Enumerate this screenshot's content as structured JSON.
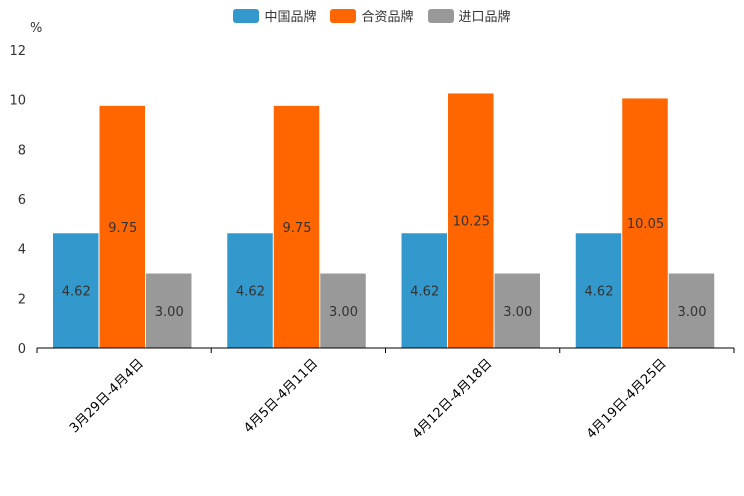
{
  "chart_data": {
    "type": "bar",
    "unit_label": "%",
    "categories": [
      "3月29日-4月4日",
      "4月5日-4月11日",
      "4月12日-4月18日",
      "4月19日-4月25日"
    ],
    "series": [
      {
        "name": "中国品牌",
        "color": "#3398cc",
        "values": [
          4.62,
          4.62,
          4.62,
          4.62
        ],
        "labels": [
          "4.62",
          "4.62",
          "4.62",
          "4.62"
        ]
      },
      {
        "name": "合资品牌",
        "color": "#ff6600",
        "values": [
          9.75,
          9.75,
          10.25,
          10.05
        ],
        "labels": [
          "9.75",
          "9.75",
          "10.25",
          "10.05"
        ]
      },
      {
        "name": "进口品牌",
        "color": "#999999",
        "values": [
          3.0,
          3.0,
          3.0,
          3.0
        ],
        "labels": [
          "3.00",
          "3.00",
          "3.00",
          "3.00"
        ]
      }
    ],
    "ylim": [
      0,
      12
    ],
    "yticks": [
      "0",
      "2",
      "4",
      "6",
      "8",
      "10",
      "12"
    ],
    "legend_position": "top-center"
  }
}
